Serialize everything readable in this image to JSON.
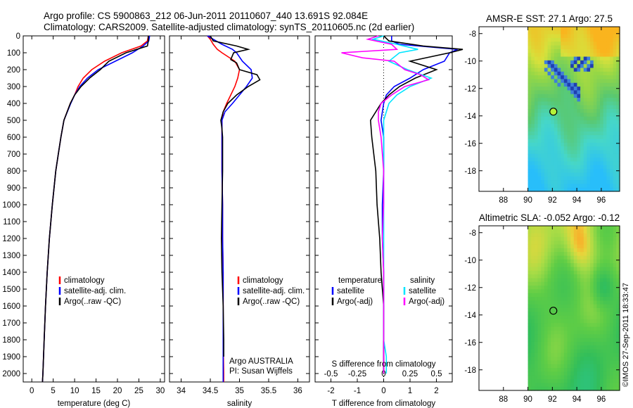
{
  "header": {
    "title_line1": "Argo profile: CS 5900863_212 06-Jun-2011 20110607_440 13.691S 92.084E",
    "title_line2": "Climatology: CARS2009. Satellite-adjusted climatology: synTS_20110605.nc (2d earlier)"
  },
  "stamp": "©IMOS 27-Sep-2011 18:33:47",
  "colors": {
    "climatology": "#ff0000",
    "satellite": "#0000ff",
    "argo": "#000000",
    "satellite_s": "#00e5ff",
    "argo_s": "#ff00ff"
  },
  "chart_data": [
    {
      "type": "line",
      "id": "temperature",
      "xlabel": "temperature (deg C)",
      "ylabel": "",
      "xlim": [
        -2,
        31
      ],
      "ylim": [
        2050,
        0
      ],
      "xticks": [
        0,
        5,
        10,
        15,
        20,
        25,
        30
      ],
      "yticks": [
        0,
        100,
        200,
        300,
        400,
        500,
        600,
        700,
        800,
        900,
        1000,
        1100,
        1200,
        1300,
        1400,
        1500,
        1600,
        1700,
        1800,
        1900,
        2000
      ],
      "legend": [
        "climatology",
        "satellite-adj. clim.",
        "Argo(..raw -QC)"
      ],
      "series": [
        {
          "name": "climatology",
          "color": "#ff0000",
          "depth": [
            0,
            30,
            60,
            100,
            150,
            200,
            250,
            300,
            350,
            400,
            500,
            600,
            700,
            800,
            1000,
            1200,
            1400,
            1600,
            1800,
            2000,
            2050
          ],
          "values": [
            27.2,
            27.0,
            25.5,
            21,
            17,
            14,
            12,
            10.8,
            10,
            9,
            7.5,
            6.8,
            6.2,
            5.6,
            4.8,
            4.1,
            3.6,
            3.2,
            2.9,
            2.6,
            2.5
          ]
        },
        {
          "name": "satellite-adj. clim.",
          "color": "#0000ff",
          "depth": [
            0,
            30,
            60,
            100,
            150,
            200,
            250,
            300,
            350,
            400,
            500,
            600,
            700,
            800,
            1000,
            1200,
            1400,
            1600,
            1800,
            2000,
            2050
          ],
          "values": [
            27.5,
            27.3,
            26,
            23.5,
            19.5,
            15.5,
            13,
            11.2,
            10,
            9.1,
            7.5,
            6.8,
            6.2,
            5.6,
            4.8,
            4.1,
            3.6,
            3.2,
            2.9,
            2.6,
            2.5
          ]
        },
        {
          "name": "Argo(..raw -QC)",
          "color": "#000000",
          "depth": [
            0,
            30,
            60,
            80,
            100,
            150,
            200,
            250,
            300,
            350,
            400,
            500,
            600,
            700,
            800,
            1000,
            1200,
            1400,
            1600,
            1800,
            2000,
            2050
          ],
          "values": [
            27.2,
            27.2,
            27,
            24.5,
            22,
            18,
            16,
            13.5,
            11.5,
            10,
            9,
            7.5,
            6.8,
            6.2,
            5.6,
            4.8,
            4.1,
            3.6,
            3.2,
            2.9,
            2.6,
            2.5
          ]
        }
      ]
    },
    {
      "type": "line",
      "id": "salinity",
      "xlabel": "salinity",
      "xlim": [
        33.8,
        36.2
      ],
      "ylim": [
        2050,
        0
      ],
      "xticks": [
        34,
        34.5,
        35,
        35.5,
        36
      ],
      "legend": [
        "climatology",
        "satellite-adj. clim.",
        "Argo(..raw -QC)"
      ],
      "annotation": [
        "Argo AUSTRALIA",
        "PI: Susan Wijffels"
      ],
      "series": [
        {
          "name": "climatology",
          "color": "#ff0000",
          "depth": [
            0,
            20,
            50,
            80,
            100,
            150,
            200,
            250,
            300,
            350,
            400,
            450,
            500,
            600,
            800,
            1000,
            1200,
            1400,
            1600,
            1800,
            2000,
            2050
          ],
          "values": [
            34.45,
            34.5,
            34.55,
            34.62,
            34.7,
            34.92,
            35.0,
            34.97,
            34.92,
            34.85,
            34.78,
            34.72,
            34.7,
            34.7,
            34.7,
            34.71,
            34.71,
            34.72,
            34.72,
            34.72,
            34.73,
            34.73
          ]
        },
        {
          "name": "satellite-adj. clim.",
          "color": "#0000ff",
          "depth": [
            0,
            20,
            50,
            80,
            100,
            150,
            200,
            250,
            300,
            350,
            400,
            450,
            500,
            600,
            800,
            1000,
            1200,
            1400,
            1600,
            1800,
            2000,
            2050
          ],
          "values": [
            34.45,
            34.55,
            34.7,
            34.88,
            34.95,
            35.05,
            35.2,
            35.22,
            35.12,
            35.0,
            34.88,
            34.75,
            34.7,
            34.7,
            34.7,
            34.71,
            34.71,
            34.72,
            34.72,
            34.72,
            34.72,
            34.72
          ]
        },
        {
          "name": "Argo(..raw -QC)",
          "color": "#000000",
          "depth": [
            0,
            30,
            60,
            80,
            100,
            140,
            160,
            200,
            230,
            260,
            300,
            350,
            400,
            450,
            500,
            550,
            600,
            800,
            1000,
            1200,
            1400,
            1600,
            1800,
            1900
          ],
          "values": [
            34.5,
            34.55,
            34.95,
            35.15,
            34.9,
            34.85,
            34.95,
            35.0,
            35.3,
            35.35,
            35.15,
            34.95,
            34.8,
            34.72,
            34.68,
            34.7,
            34.71,
            34.71,
            34.7,
            34.69,
            34.7,
            34.72,
            34.73,
            34.73
          ]
        }
      ]
    },
    {
      "type": "line",
      "id": "difference",
      "xlabel": "T difference from climatology",
      "xlabel_top": "S difference from climatology",
      "xlim": [
        -2.6,
        2.6
      ],
      "ylim": [
        2050,
        0
      ],
      "xticks": [
        -2,
        -1,
        0,
        1,
        2
      ],
      "xticks_s_labels": [
        "-0.5",
        "-0.25",
        "0",
        "0.25",
        "0.5"
      ],
      "xticks_s_pos": [
        -2,
        -1,
        0,
        1,
        2
      ],
      "legend_t": [
        "temperature",
        "satellite",
        "Argo(-adj)"
      ],
      "legend_s": [
        "salinity",
        "satellite",
        "Argo(-adj)"
      ],
      "series": [
        {
          "name": "satellite",
          "group": "temperature",
          "color": "#0000ff",
          "depth": [
            0,
            30,
            50,
            80,
            100,
            150,
            200,
            250,
            300,
            350,
            400,
            500,
            600,
            800,
            1000,
            1200,
            1400,
            1600,
            1800,
            2000
          ],
          "values": [
            0.3,
            0.3,
            0.6,
            2.8,
            2.5,
            2.3,
            1.5,
            1.0,
            0.4,
            0.1,
            0.0,
            -0.1,
            0.0,
            0.0,
            -0.05,
            -0.05,
            0.0,
            0.0,
            0.0,
            0.0
          ]
        },
        {
          "name": "Argo(-adj)",
          "group": "temperature",
          "color": "#000000",
          "depth": [
            0,
            30,
            60,
            80,
            100,
            150,
            200,
            250,
            300,
            350,
            400,
            450,
            500,
            600,
            800,
            1000,
            1200,
            1400,
            1600,
            1800,
            2000
          ],
          "values": [
            0,
            0.2,
            1.5,
            3.0,
            2.5,
            1.0,
            2.0,
            1.2,
            0.6,
            0.2,
            -0.1,
            -0.3,
            -0.5,
            -0.45,
            -0.3,
            -0.25,
            -0.15,
            -0.1,
            0.0,
            0.0,
            0.0
          ]
        },
        {
          "name": "satellite",
          "group": "salinity",
          "color": "#00e5ff",
          "depth": [
            0,
            20,
            50,
            80,
            100,
            150,
            200,
            250,
            300,
            350,
            400,
            500,
            600,
            800,
            1000,
            1200,
            1400,
            1600,
            1800,
            1900,
            2000
          ],
          "values": [
            0,
            -0.4,
            0.5,
            1.3,
            0.6,
            0.2,
            0.9,
            1.8,
            1.0,
            0.5,
            0.2,
            0.0,
            0.0,
            0.0,
            0.0,
            0.0,
            0.0,
            0.0,
            0.0,
            0.1,
            0.1
          ]
        },
        {
          "name": "Argo(-adj)",
          "group": "salinity",
          "color": "#ff00ff",
          "depth": [
            0,
            20,
            50,
            80,
            100,
            130,
            150,
            200,
            230,
            260,
            300,
            350,
            400,
            450,
            500,
            600,
            800,
            1000,
            1200,
            1400,
            1600,
            1800,
            2000
          ],
          "values": [
            -0.2,
            -0.6,
            0.3,
            0.5,
            -1.6,
            -0.8,
            0.4,
            0.8,
            1.4,
            1.7,
            0.8,
            0.3,
            -0.1,
            -0.2,
            -0.2,
            -0.1,
            0.0,
            0.0,
            -0.05,
            0.0,
            0.0,
            0.0,
            0.0
          ]
        }
      ]
    },
    {
      "type": "heatmap",
      "id": "sst-map",
      "title": "AMSR-E SST: 27.1 Argo: 27.5",
      "xlim": [
        86,
        97.5
      ],
      "ylim": [
        -19.5,
        -7.5
      ],
      "xticks": [
        88,
        90,
        92,
        94,
        96
      ],
      "yticks": [
        -8,
        -10,
        -12,
        -14,
        -16,
        -18
      ],
      "data_xmin": 90,
      "argo_marker": [
        92.08,
        -13.69
      ]
    },
    {
      "type": "heatmap",
      "id": "sla-map",
      "title": "Altimetric SLA: -0.052 Argo: -0.12",
      "xlim": [
        86,
        97.5
      ],
      "ylim": [
        -19.5,
        -7.5
      ],
      "xticks": [
        88,
        90,
        92,
        94,
        96
      ],
      "yticks": [
        -8,
        -10,
        -12,
        -14,
        -16,
        -18
      ],
      "data_xmin": 90,
      "argo_marker": [
        92.08,
        -13.69
      ]
    }
  ]
}
